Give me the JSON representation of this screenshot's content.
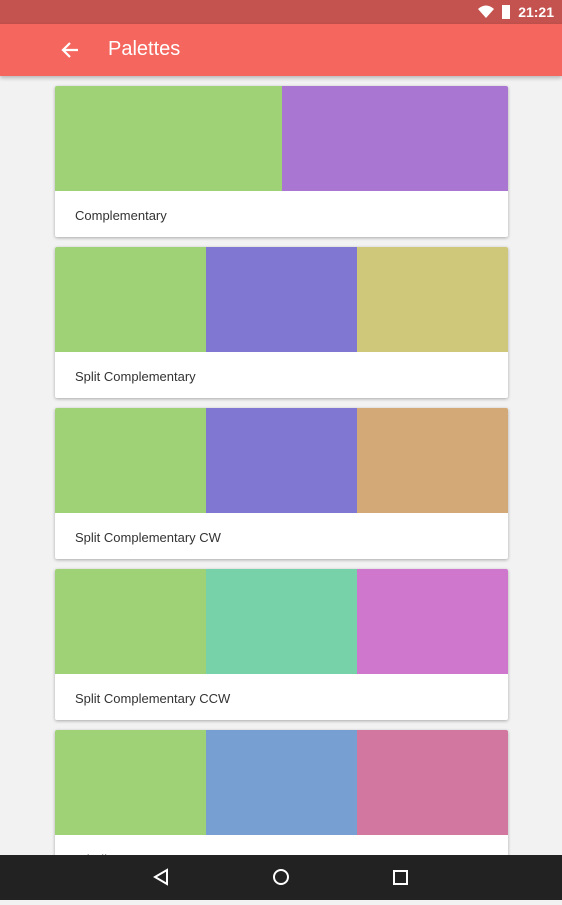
{
  "status_bar": {
    "time": "21:21"
  },
  "app_bar": {
    "title": "Palettes"
  },
  "palettes": [
    {
      "name": "Complementary",
      "colors": [
        "#9fd277",
        "#a977d2"
      ]
    },
    {
      "name": "Split Complementary",
      "colors": [
        "#9fd277",
        "#7f77d2",
        "#cfc77a"
      ]
    },
    {
      "name": "Split Complementary CW",
      "colors": [
        "#9fd277",
        "#7f77d2",
        "#d2a977"
      ]
    },
    {
      "name": "Split Complementary CCW",
      "colors": [
        "#9fd277",
        "#77d2a9",
        "#cf77cc"
      ]
    },
    {
      "name": "Triadic",
      "colors": [
        "#9fd277",
        "#779fd2",
        "#d277a0"
      ]
    }
  ]
}
